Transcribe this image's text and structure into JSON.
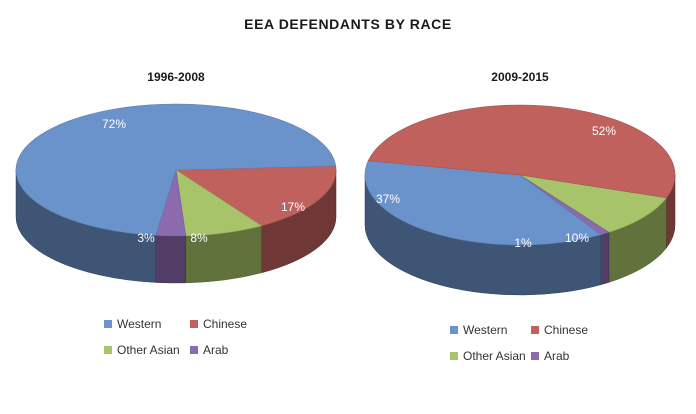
{
  "title": "EEA DEFENDANTS BY RACE",
  "colors": {
    "Western": "#6b93cb",
    "Chinese": "#c0615d",
    "Other Asian": "#a8c46a",
    "Arab": "#8c6aae"
  },
  "chart_data": [
    {
      "type": "pie",
      "title": "1996-2008",
      "categories": [
        "Western",
        "Chinese",
        "Other Asian",
        "Arab"
      ],
      "values": [
        72,
        17,
        8,
        3
      ],
      "labels": [
        "72%",
        "17%",
        "8%",
        "3%"
      ],
      "style": "3d",
      "legend_position": "bottom"
    },
    {
      "type": "pie",
      "title": "2009-2015",
      "categories": [
        "Western",
        "Chinese",
        "Other Asian",
        "Arab"
      ],
      "values": [
        37,
        52,
        10,
        1
      ],
      "labels": [
        "37%",
        "52%",
        "10%",
        "1%"
      ],
      "style": "3d",
      "legend_position": "bottom"
    }
  ]
}
